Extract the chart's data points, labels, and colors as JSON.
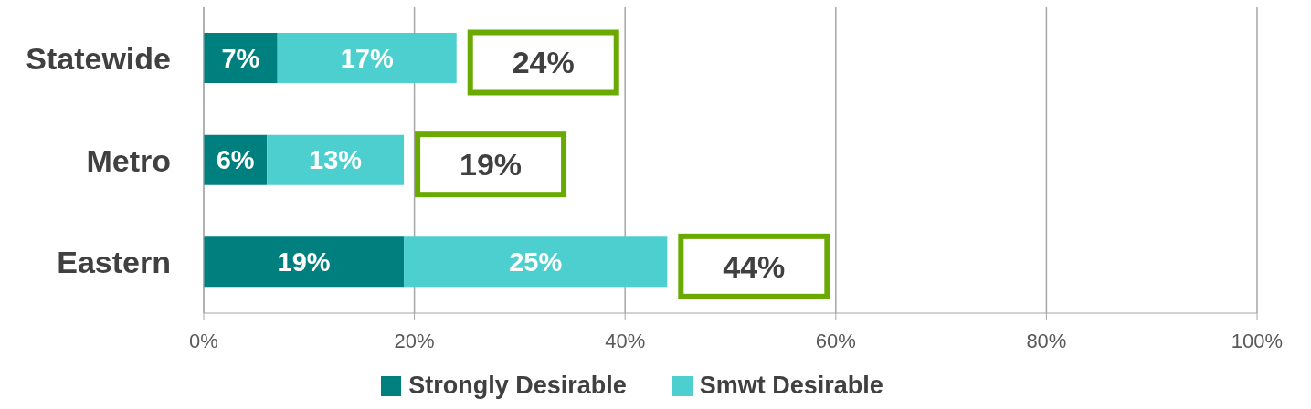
{
  "chart_data": {
    "type": "bar",
    "orientation": "horizontal",
    "stacked": true,
    "categories": [
      "Statewide",
      "Metro",
      "Eastern"
    ],
    "series": [
      {
        "name": "Strongly Desirable",
        "color": "#007f7f",
        "values": [
          7,
          6,
          19
        ],
        "value_labels": [
          "7%",
          "6%",
          "19%"
        ]
      },
      {
        "name": "Smwt Desirable",
        "color": "#4ecfcf",
        "values": [
          17,
          13,
          25
        ],
        "value_labels": [
          "17%",
          "13%",
          "25%"
        ]
      }
    ],
    "totals": [
      "24%",
      "19%",
      "44%"
    ],
    "xlim": [
      0,
      100
    ],
    "xticks": [
      {
        "value": 0,
        "label": "0%"
      },
      {
        "value": 20,
        "label": "20%"
      },
      {
        "value": 40,
        "label": "40%"
      },
      {
        "value": 60,
        "label": "60%"
      },
      {
        "value": 80,
        "label": "80%"
      },
      {
        "value": 100,
        "label": "100%"
      }
    ],
    "grid": "x",
    "legend": "bottom"
  }
}
